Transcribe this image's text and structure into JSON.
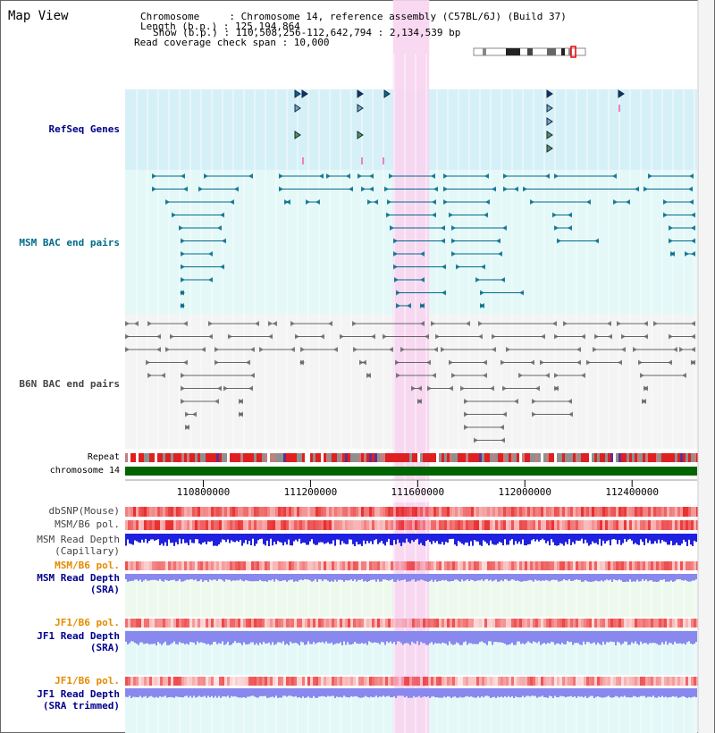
{
  "view_title": "Map View",
  "info": {
    "lines": [
      "Chromosome     : Chromosome 14, reference assembly (C57BL/6J) (Build 37)",
      "Length (b.p.) : 125,194,864",
      "Show (b.p.) : 110,508,256-112,642,794 : 2,134,539 bp",
      "Read coverage check span : 10,000"
    ]
  },
  "tracks": {
    "refseq": "RefSeq Genes",
    "msm_bac": "MSM BAC end pairs",
    "b6n_bac": "B6N BAC end pairs",
    "repeat": "Repeat",
    "chromosome": "chromosome 14",
    "dbsnp": "dbSNP(Mouse)",
    "msm_b6_pol_1": "MSM/B6 pol.",
    "msm_read_depth_cap_1": "MSM Read Depth",
    "msm_read_depth_cap_2": "(Capillary)",
    "msm_b6_pol_2": "MSM/B6 pol.",
    "msm_read_depth_sra_1": "MSM Read Depth",
    "msm_read_depth_sra_2": "(SRA)",
    "jf1_b6_pol_1": "JF1/B6 pol.",
    "jf1_read_depth_sra_1": "JF1 Read Depth",
    "jf1_read_depth_sra_2": "(SRA)",
    "jf1_b6_pol_2": "JF1/B6 pol.",
    "jf1_read_depth_trim_1": "JF1 Read Depth",
    "jf1_read_depth_trim_2": "(SRA trimmed)"
  },
  "ruler": {
    "ticks": [
      {
        "label": "110800000",
        "value": 110800000
      },
      {
        "label": "111200000",
        "value": 111200000
      },
      {
        "label": "111600000",
        "value": 111600000
      },
      {
        "label": "112000000",
        "value": 112000000
      },
      {
        "label": "112400000",
        "value": 112400000
      }
    ],
    "start": 110508256,
    "end": 112642794,
    "highlight": [
      111508000,
      111643000
    ]
  },
  "colors": {
    "refseq_bg": "#d6f0f8",
    "msm_bg": "#e4f8f8",
    "b6n_bg": "#f4f4f4",
    "highlight": "#f8d4f0",
    "chromosome_bar": "#006400",
    "read_depth_capillary": "#2020e0",
    "read_depth_sra": "#8888ee",
    "pol_red": "#e82020",
    "msm_feature": "#006a8a",
    "b6n_feature": "#666666"
  }
}
